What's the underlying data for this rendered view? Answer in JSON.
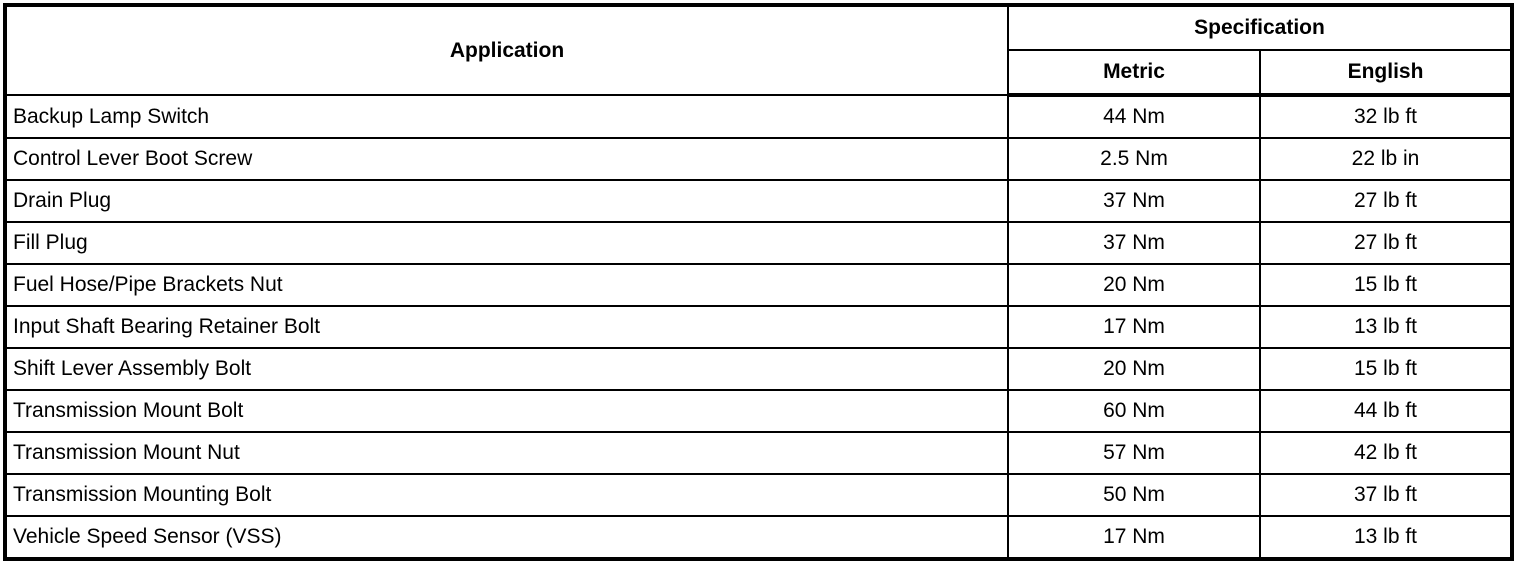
{
  "table": {
    "title_header": {
      "application": "Application",
      "specification": "Specification",
      "metric": "Metric",
      "english": "English"
    },
    "colors": {
      "border": "#000000",
      "background": "#ffffff",
      "text": "#000000"
    },
    "rows": [
      {
        "application": "Backup Lamp Switch",
        "metric": "44 Nm",
        "english": "32 lb ft"
      },
      {
        "application": "Control Lever Boot Screw",
        "metric": "2.5 Nm",
        "english": "22 lb in"
      },
      {
        "application": "Drain Plug",
        "metric": "37 Nm",
        "english": "27 lb ft"
      },
      {
        "application": "Fill Plug",
        "metric": "37 Nm",
        "english": "27 lb ft"
      },
      {
        "application": "Fuel Hose/Pipe Brackets Nut",
        "metric": "20 Nm",
        "english": "15 lb ft"
      },
      {
        "application": "Input Shaft Bearing Retainer Bolt",
        "metric": "17 Nm",
        "english": "13 lb ft"
      },
      {
        "application": "Shift Lever Assembly Bolt",
        "metric": "20 Nm",
        "english": "15 lb ft"
      },
      {
        "application": "Transmission Mount Bolt",
        "metric": "60 Nm",
        "english": "44 lb ft"
      },
      {
        "application": "Transmission Mount Nut",
        "metric": "57 Nm",
        "english": "42 lb ft"
      },
      {
        "application": "Transmission Mounting Bolt",
        "metric": "50 Nm",
        "english": "37 lb ft"
      },
      {
        "application": "Vehicle Speed Sensor (VSS)",
        "metric": "17 Nm",
        "english": "13 lb ft"
      }
    ]
  }
}
